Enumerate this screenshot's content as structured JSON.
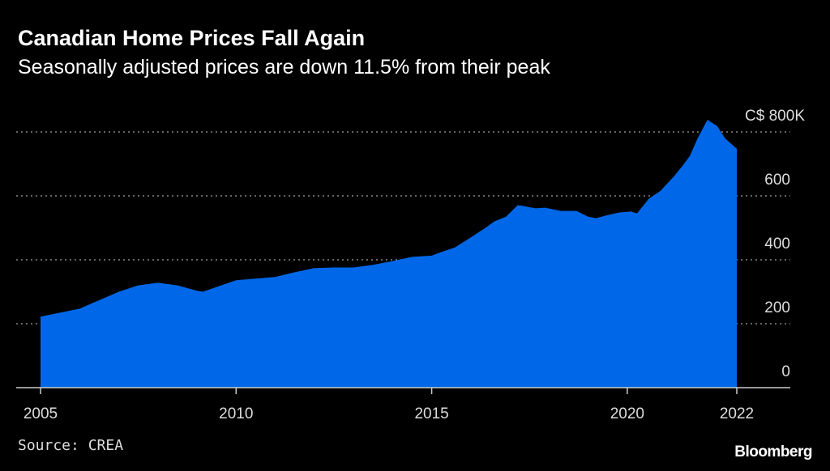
{
  "title": "Canadian Home Prices Fall Again",
  "subtitle": "Seasonally adjusted prices are down 11.5% from their peak",
  "source": "Source: CREA",
  "logo": "Bloomberg",
  "chart_data": {
    "type": "area",
    "title": "Canadian Home Prices Fall Again",
    "subtitle": "Seasonally adjusted prices are down 11.5% from their peak",
    "xlabel": "",
    "ylabel": "",
    "color": "#0068e8",
    "xlim": [
      2005,
      2022.8
    ],
    "ylim": [
      0,
      800
    ],
    "grid": true,
    "x_ticks": [
      {
        "value": 2005,
        "label": "2005"
      },
      {
        "value": 2010,
        "label": "2010"
      },
      {
        "value": 2015,
        "label": "2015"
      },
      {
        "value": 2020,
        "label": "2020"
      },
      {
        "value": 2022.8,
        "label": "2022"
      }
    ],
    "y_ticks": [
      {
        "value": 0,
        "label": "0"
      },
      {
        "value": 200,
        "label": "200"
      },
      {
        "value": 400,
        "label": "400"
      },
      {
        "value": 600,
        "label": "600"
      },
      {
        "value": 800,
        "label": "C$ 800K"
      }
    ],
    "x": [
      2005.0,
      2006.0,
      2007.0,
      2007.5,
      2008.0,
      2008.5,
      2009.0,
      2009.15,
      2009.5,
      2010.0,
      2010.5,
      2011.0,
      2011.5,
      2012.0,
      2012.5,
      2013.0,
      2013.5,
      2014.0,
      2014.5,
      2015.0,
      2015.2,
      2015.6,
      2016.0,
      2016.4,
      2016.6,
      2016.9,
      2017.2,
      2017.35,
      2017.65,
      2017.9,
      2018.3,
      2018.7,
      2019.0,
      2019.2,
      2019.5,
      2019.8,
      2020.1,
      2020.25,
      2020.55,
      2020.85,
      2021.2,
      2021.4,
      2021.6,
      2021.8,
      2022.05,
      2022.3,
      2022.5,
      2022.8
    ],
    "values": [
      222,
      247,
      300,
      320,
      328,
      320,
      303,
      300,
      315,
      336,
      341,
      346,
      361,
      374,
      376,
      376,
      384,
      396,
      409,
      413,
      422,
      439,
      470,
      502,
      520,
      535,
      571,
      568,
      561,
      563,
      553,
      553,
      535,
      530,
      540,
      548,
      551,
      545,
      591,
      616,
      662,
      692,
      725,
      780,
      838,
      818,
      780,
      747
    ]
  }
}
